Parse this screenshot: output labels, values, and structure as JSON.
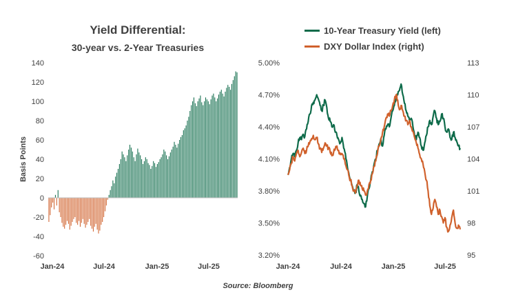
{
  "chart_data": [
    {
      "type": "bar",
      "title": "Yield Differential:",
      "subtitle": "30-year vs. 2-Year Treasuries",
      "ylabel": "Basis Points",
      "ylim": [
        -60,
        140
      ],
      "yticks": [
        "140",
        "120",
        "100",
        "80",
        "60",
        "40",
        "20",
        "0",
        "-20",
        "-40",
        "-60"
      ],
      "xticks": [
        "Jan-24",
        "Jul-24",
        "Jan-25",
        "Jul-25"
      ],
      "positive_color": "#0e6b4a",
      "negative_color": "#d0612c",
      "series": [
        {
          "values": [
            -25,
            -18,
            -10,
            -5,
            -12,
            3,
            -8,
            8,
            -15,
            -20,
            -26,
            -30,
            -32,
            -28,
            -24,
            -27,
            -33,
            -29,
            -25,
            -22,
            -20,
            -26,
            -28,
            -24,
            -30,
            -26,
            -22,
            -27,
            -31,
            -28,
            -25,
            -22,
            -29,
            -32,
            -35,
            -30,
            -27,
            -33,
            -37,
            -34,
            -28,
            -25,
            -20,
            -14,
            -8,
            -2,
            3,
            8,
            12,
            18,
            15,
            22,
            26,
            30,
            35,
            40,
            48,
            45,
            42,
            38,
            44,
            50,
            55,
            52,
            48,
            42,
            38,
            45,
            51,
            47,
            44,
            40,
            35,
            38,
            42,
            40,
            36,
            34,
            30,
            33,
            38,
            36,
            32,
            35,
            37,
            40,
            42,
            45,
            50,
            48,
            44,
            40,
            43,
            47,
            50,
            53,
            58,
            55,
            52,
            56,
            60,
            63,
            65,
            70,
            72,
            75,
            80,
            84,
            90,
            96,
            100,
            104,
            98,
            95,
            100,
            103,
            106,
            99,
            96,
            100,
            104,
            102,
            100,
            97,
            102,
            106,
            108,
            104,
            100,
            103,
            107,
            110,
            112,
            108,
            105,
            110,
            114,
            117,
            115,
            112,
            118,
            122,
            126,
            131,
            130
          ]
        }
      ]
    },
    {
      "type": "line",
      "ylim_left": [
        3.2,
        5.0
      ],
      "yticks_left": [
        "5.00%",
        "4.70%",
        "4.40%",
        "4.10%",
        "3.80%",
        "3.50%",
        "3.20%"
      ],
      "ylim_right": [
        95,
        113
      ],
      "yticks_right": [
        "113",
        "110",
        "107",
        "104",
        "101",
        "98",
        "95"
      ],
      "xticks": [
        "Jan-24",
        "Jul-24",
        "Jan-25",
        "Jul-25"
      ],
      "series": [
        {
          "name": "10-Year Treasury Yield (left)",
          "color": "#0e6b4a",
          "axis": "left",
          "values": [
            3.95,
            4.02,
            4.1,
            4.15,
            4.12,
            4.18,
            4.25,
            4.3,
            4.28,
            4.33,
            4.31,
            4.38,
            4.45,
            4.52,
            4.6,
            4.63,
            4.65,
            4.7,
            4.66,
            4.6,
            4.55,
            4.6,
            4.65,
            4.58,
            4.48,
            4.45,
            4.4,
            4.42,
            4.35,
            4.32,
            4.28,
            4.25,
            4.3,
            4.2,
            4.15,
            4.05,
            3.97,
            3.9,
            3.85,
            3.8,
            3.78,
            3.86,
            3.8,
            3.76,
            3.72,
            3.68,
            3.65,
            3.75,
            3.82,
            3.9,
            3.98,
            4.05,
            4.1,
            4.18,
            4.24,
            4.29,
            4.22,
            4.32,
            4.38,
            4.42,
            4.4,
            4.48,
            4.55,
            4.6,
            4.66,
            4.7,
            4.74,
            4.8,
            4.7,
            4.62,
            4.55,
            4.5,
            4.45,
            4.48,
            4.4,
            4.32,
            4.28,
            4.35,
            4.3,
            4.22,
            4.18,
            4.25,
            4.32,
            4.4,
            4.46,
            4.42,
            4.5,
            4.55,
            4.48,
            4.42,
            4.45,
            4.52,
            4.48,
            4.4,
            4.35,
            4.38,
            4.3,
            4.28,
            4.35,
            4.3,
            4.26,
            4.22,
            4.2
          ]
        },
        {
          "name": "DXY Dollar Index (right)",
          "color": "#d0612c",
          "axis": "right",
          "values": [
            102.5,
            103.0,
            103.6,
            104.2,
            103.8,
            104.5,
            104.8,
            104.2,
            104.6,
            105.0,
            104.5,
            104.8,
            105.2,
            105.6,
            105.9,
            106.2,
            105.8,
            106.0,
            105.4,
            105.0,
            104.6,
            105.0,
            105.5,
            105.2,
            105.0,
            104.6,
            104.3,
            104.6,
            104.9,
            105.2,
            104.8,
            104.4,
            104.5,
            104.0,
            103.5,
            103.0,
            102.5,
            102.0,
            101.5,
            101.0,
            100.8,
            101.5,
            102.0,
            101.5,
            101.2,
            101.0,
            100.6,
            101.0,
            101.6,
            102.0,
            102.6,
            103.3,
            103.8,
            104.5,
            105.2,
            105.8,
            106.5,
            107.0,
            107.8,
            108.2,
            108.0,
            108.5,
            109.0,
            109.5,
            110.0,
            109.5,
            108.6,
            109.0,
            108.5,
            108.0,
            107.6,
            107.2,
            107.6,
            107.0,
            106.6,
            106.0,
            105.5,
            105.0,
            104.4,
            104.0,
            103.5,
            102.8,
            102.0,
            101.0,
            99.6,
            98.8,
            99.4,
            100.2,
            99.5,
            98.8,
            99.2,
            98.6,
            98.0,
            98.5,
            97.6,
            97.2,
            97.8,
            98.5,
            99.2,
            98.0,
            97.5,
            97.8,
            97.4
          ]
        }
      ]
    }
  ],
  "source": "Source: Bloomberg"
}
